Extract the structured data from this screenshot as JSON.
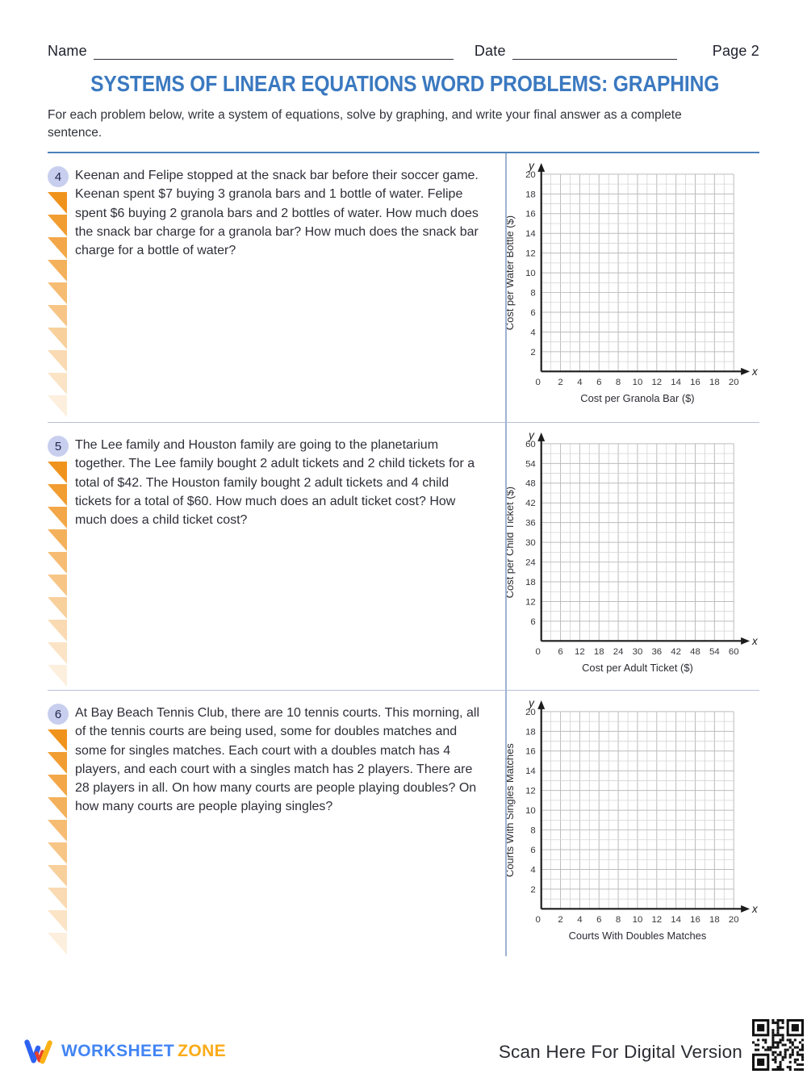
{
  "header": {
    "name_label": "Name",
    "date_label": "Date",
    "page_label": "Page 2"
  },
  "title": "SYSTEMS OF LINEAR EQUATIONS WORD PROBLEMS: GRAPHING",
  "instructions": "For each problem below, write a system of equations, solve by graphing, and write your final answer as a complete sentence.",
  "problems": [
    {
      "number": "4",
      "text": "Keenan and Felipe stopped at the snack bar before their soccer game. Keenan spent $7 buying 3 granola bars and 1 bottle of water. Felipe spent $6 buying 2 granola bars and 2 bottles of water. How much does the snack bar charge for a granola bar? How much does the snack bar charge for a bottle of water?",
      "graph": {
        "ylabel": "Cost per Water Bottle ($)",
        "xlabel": "Cost per Granola Bar ($)",
        "x_axis_letter": "x",
        "y_axis_letter": "y",
        "x_ticks": [
          "0",
          "2",
          "4",
          "6",
          "8",
          "10",
          "12",
          "14",
          "16",
          "18",
          "20"
        ],
        "y_ticks": [
          "2",
          "4",
          "6",
          "8",
          "10",
          "12",
          "14",
          "16",
          "18",
          "20"
        ],
        "grid_cells": 20
      }
    },
    {
      "number": "5",
      "text": "The Lee family and Houston family are going to the planetarium together. The Lee family bought 2 adult tickets and 2 child tickets for a total of $42. The Houston family bought 2 adult tickets and 4 child tickets for a total of $60. How much does an adult ticket cost? How much does a child ticket cost?",
      "graph": {
        "ylabel": "Cost per Child Ticket ($)",
        "xlabel": "Cost per Adult Ticket ($)",
        "x_axis_letter": "x",
        "y_axis_letter": "y",
        "x_ticks": [
          "0",
          "6",
          "12",
          "18",
          "24",
          "30",
          "36",
          "42",
          "48",
          "54",
          "60"
        ],
        "y_ticks": [
          "6",
          "12",
          "18",
          "24",
          "30",
          "36",
          "42",
          "48",
          "54",
          "60"
        ],
        "grid_cells": 20
      }
    },
    {
      "number": "6",
      "text": "At Bay Beach Tennis Club, there are 10 tennis courts. This morning, all of the tennis courts are being used, some for doubles matches and some for singles matches. Each court with a doubles match has 4 players, and each court with a singles match has 2 players. There are 28 players in all. On how many courts are people playing doubles? On how many courts are people playing singles?",
      "graph": {
        "ylabel": "Courts With Singles Matches",
        "xlabel": "Courts With Doubles Matches",
        "x_axis_letter": "x",
        "y_axis_letter": "y",
        "x_ticks": [
          "0",
          "2",
          "4",
          "6",
          "8",
          "10",
          "12",
          "14",
          "16",
          "18",
          "20"
        ],
        "y_ticks": [
          "2",
          "4",
          "6",
          "8",
          "10",
          "12",
          "14",
          "16",
          "18",
          "20"
        ],
        "grid_cells": 20
      }
    }
  ],
  "chart_data": [
    {
      "type": "grid",
      "title": "",
      "xlabel": "Cost per Granola Bar ($)",
      "ylabel": "Cost per Water Bottle ($)",
      "xlim": [
        0,
        20
      ],
      "ylim": [
        0,
        20
      ],
      "x_tick_step": 2,
      "y_tick_step": 2,
      "grid": true,
      "series": []
    },
    {
      "type": "grid",
      "title": "",
      "xlabel": "Cost per Adult Ticket ($)",
      "ylabel": "Cost per Child Ticket ($)",
      "xlim": [
        0,
        60
      ],
      "ylim": [
        0,
        60
      ],
      "x_tick_step": 6,
      "y_tick_step": 6,
      "grid": true,
      "series": []
    },
    {
      "type": "grid",
      "title": "",
      "xlabel": "Courts With Doubles Matches",
      "ylabel": "Courts With Singles Matches",
      "xlim": [
        0,
        20
      ],
      "ylim": [
        0,
        20
      ],
      "x_tick_step": 2,
      "y_tick_step": 2,
      "grid": true,
      "series": []
    }
  ],
  "footer": {
    "brand_worksheet": "WORKSHEET",
    "brand_zone": "ZONE",
    "scan_text": "Scan Here For Digital Version"
  },
  "colors": {
    "title_blue": "#3b79c0",
    "rule_top": "#4d80b8",
    "rule_light": "#b6c2d8",
    "divider": "#9fb2d0",
    "badge_bg": "#c8cfee",
    "triangle_orange": "#f0931d",
    "brand_blue": "#4285f4",
    "brand_amber": "#fbab18"
  }
}
